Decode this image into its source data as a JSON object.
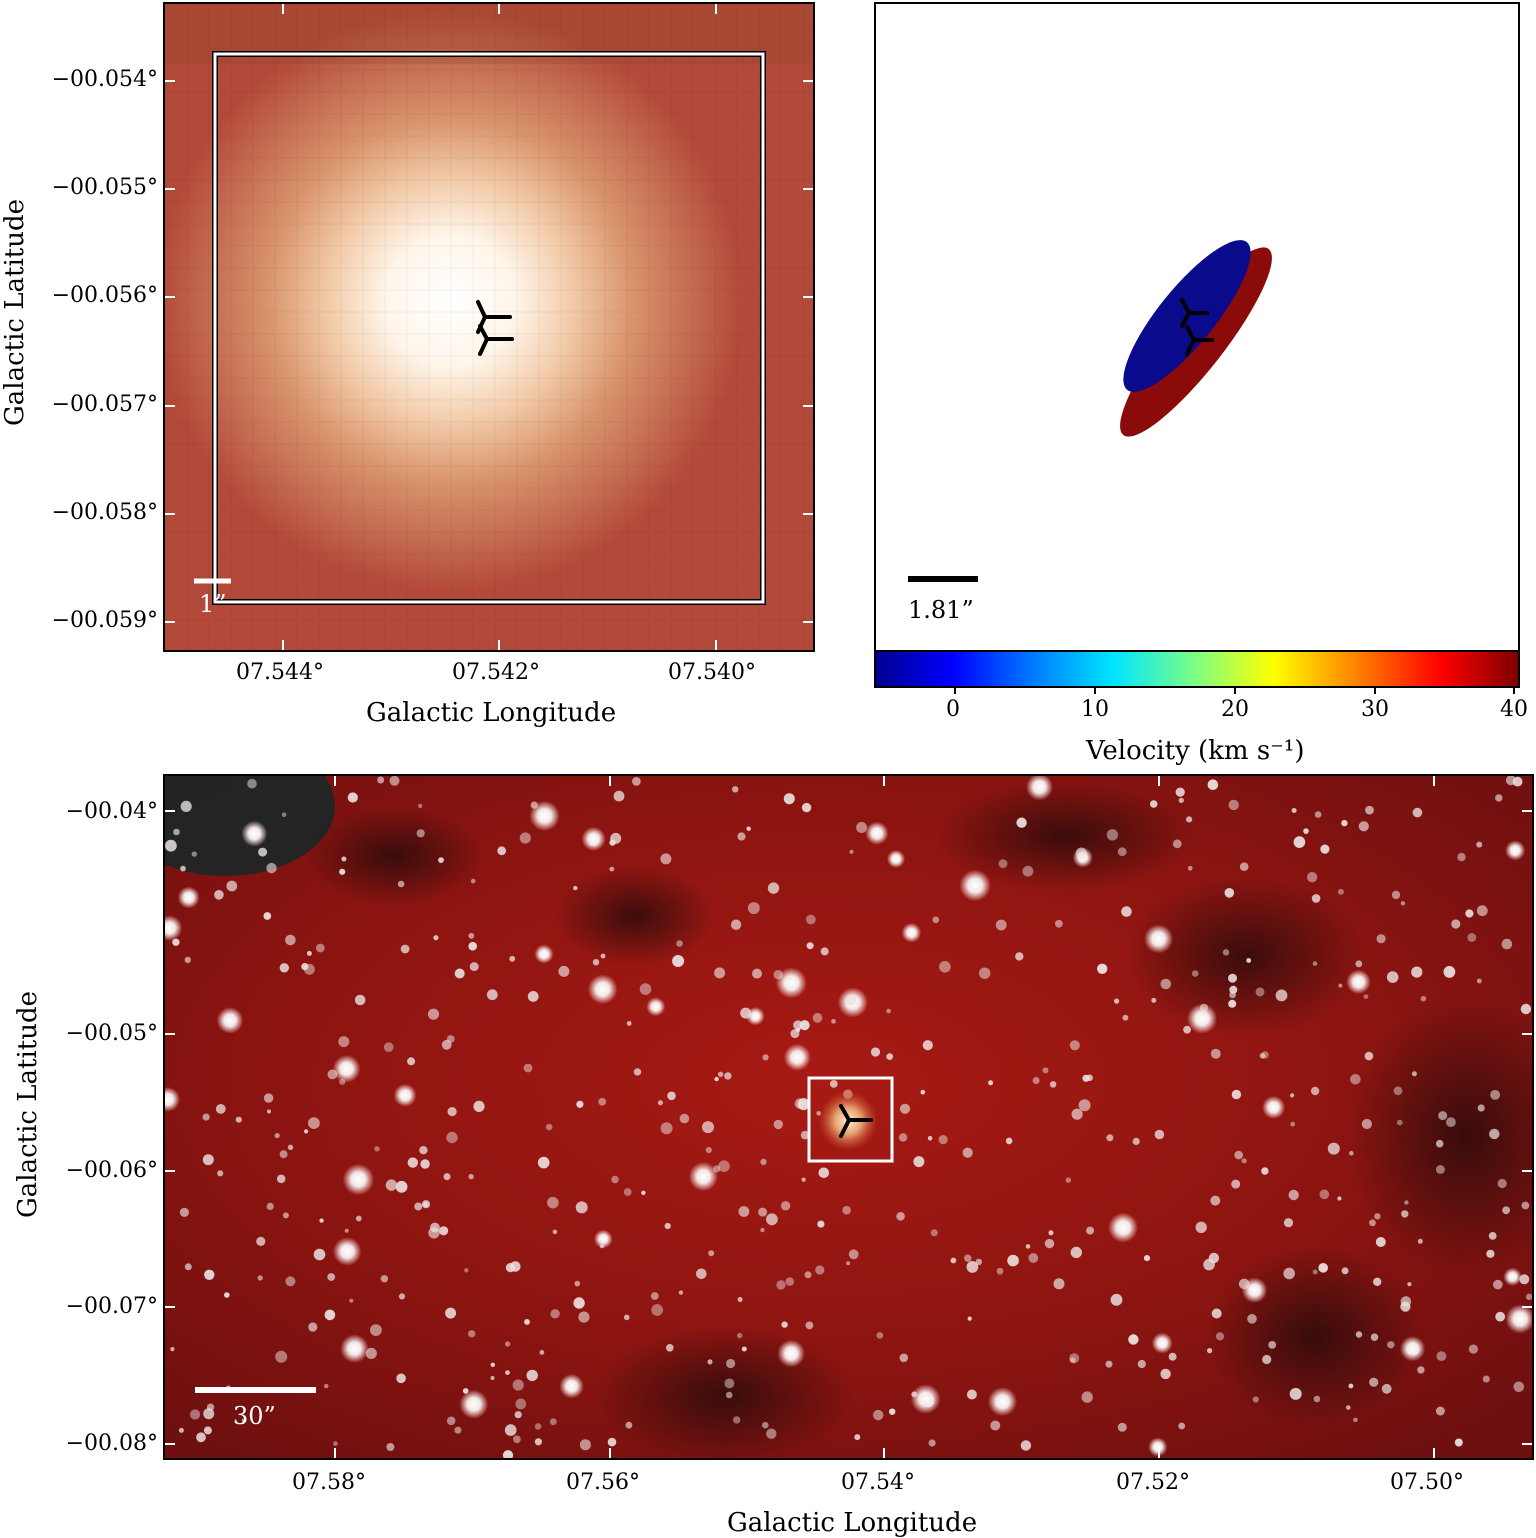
{
  "top_left": {
    "ylabel": "Galactic Latitude",
    "xlabel": "Galactic Longitude",
    "yticks": [
      "−00.054°",
      "−00.055°",
      "−00.056°",
      "−00.057°",
      "−00.058°",
      "−00.059°"
    ],
    "xticks": [
      "07.544°",
      "07.542°",
      "07.540°"
    ],
    "scalebar": "1”"
  },
  "top_right": {
    "scalebar": "1.81”",
    "colorbar_label": "Velocity (km s⁻¹)",
    "colorbar_ticks": [
      "0",
      "10",
      "20",
      "30",
      "40"
    ],
    "colorbar_range": [
      -6,
      40
    ],
    "blue_color": "#0a0a8c",
    "red_color": "#8b0a0a"
  },
  "bottom": {
    "ylabel": "Galactic Latitude",
    "xlabel": "Galactic Longitude",
    "yticks": [
      "−00.04°",
      "−00.05°",
      "−00.06°",
      "−00.07°",
      "−00.08°"
    ],
    "xticks": [
      "07.58°",
      "07.56°",
      "07.54°",
      "07.52°",
      "07.50°"
    ],
    "scalebar": "30”"
  },
  "icons": {
    "source_marker": "tri-marker-icon"
  }
}
